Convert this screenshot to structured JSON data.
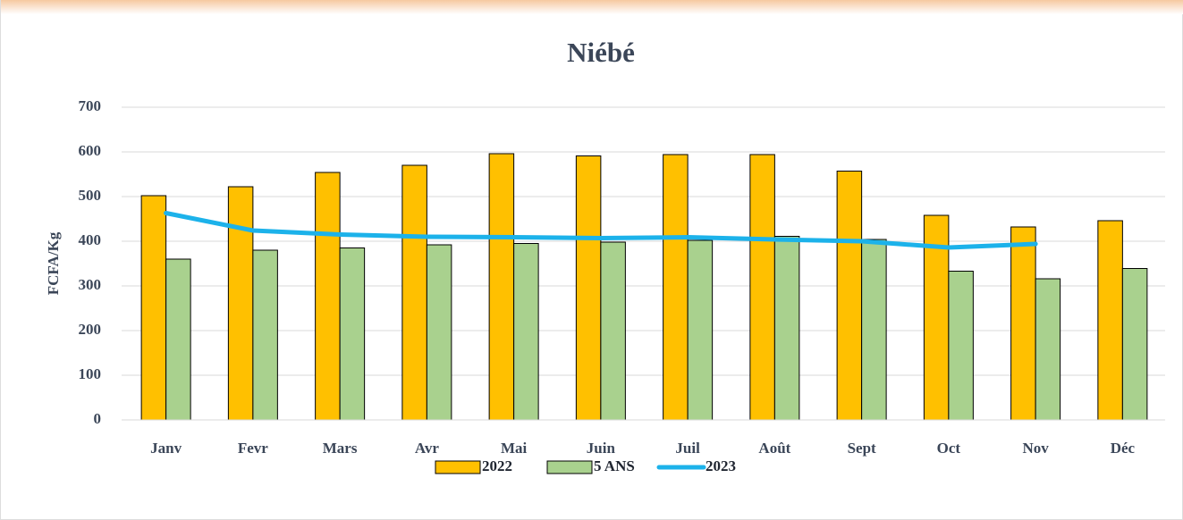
{
  "chart_data": {
    "type": "bar_line",
    "title": "Niébé",
    "y_label": "FCFA/Kg",
    "categories": [
      "Janv",
      "Fevr",
      "Mars",
      "Avr",
      "Mai",
      "Juin",
      "Juil",
      "Août",
      "Sept",
      "Oct",
      "Nov",
      "Déc"
    ],
    "series": [
      {
        "name": "2022",
        "type": "bar",
        "color": "#ffc000",
        "values": [
          502,
          522,
          554,
          570,
          596,
          591,
          594,
          594,
          557,
          458,
          432,
          446
        ]
      },
      {
        "name": "5 ANS",
        "type": "bar",
        "color": "#a9d18e",
        "values": [
          360,
          380,
          385,
          392,
          395,
          398,
          402,
          411,
          404,
          333,
          316,
          339
        ]
      },
      {
        "name": "2023",
        "type": "line",
        "color": "#1cb2ea",
        "values": [
          463,
          424,
          415,
          410,
          409,
          407,
          409,
          404,
          400,
          386,
          394,
          null
        ]
      }
    ],
    "ylim": [
      0,
      700
    ],
    "yticks": [
      0,
      100,
      200,
      300,
      400,
      500,
      600,
      700
    ],
    "grid": true,
    "legend": "bottom"
  }
}
